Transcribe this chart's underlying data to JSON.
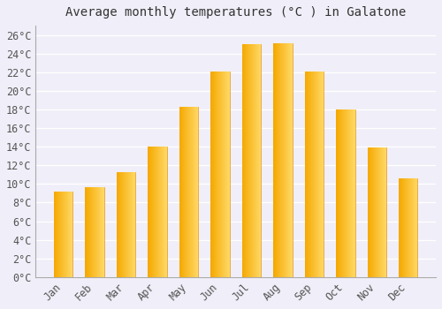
{
  "title": "Average monthly temperatures (°C ) in Galatone",
  "months": [
    "Jan",
    "Feb",
    "Mar",
    "Apr",
    "May",
    "Jun",
    "Jul",
    "Aug",
    "Sep",
    "Oct",
    "Nov",
    "Dec"
  ],
  "values": [
    9.2,
    9.7,
    11.3,
    14.0,
    18.3,
    22.1,
    25.0,
    25.1,
    22.1,
    18.0,
    13.9,
    10.6
  ],
  "bar_color_left": "#F5A800",
  "bar_color_right": "#FFD966",
  "background_color": "#F0EEF8",
  "plot_bg_color": "#F0EEF8",
  "grid_color": "#FFFFFF",
  "tick_label_color": "#555555",
  "title_color": "#333333",
  "spine_color": "#AAAAAA",
  "ylim": [
    0,
    27
  ],
  "yticks": [
    0,
    2,
    4,
    6,
    8,
    10,
    12,
    14,
    16,
    18,
    20,
    22,
    24,
    26
  ],
  "ytick_labels": [
    "0°C",
    "2°C",
    "4°C",
    "6°C",
    "8°C",
    "10°C",
    "12°C",
    "14°C",
    "16°C",
    "18°C",
    "20°C",
    "22°C",
    "24°C",
    "26°C"
  ],
  "title_fontsize": 10,
  "tick_fontsize": 8.5,
  "font_family": "monospace",
  "bar_width": 0.6
}
